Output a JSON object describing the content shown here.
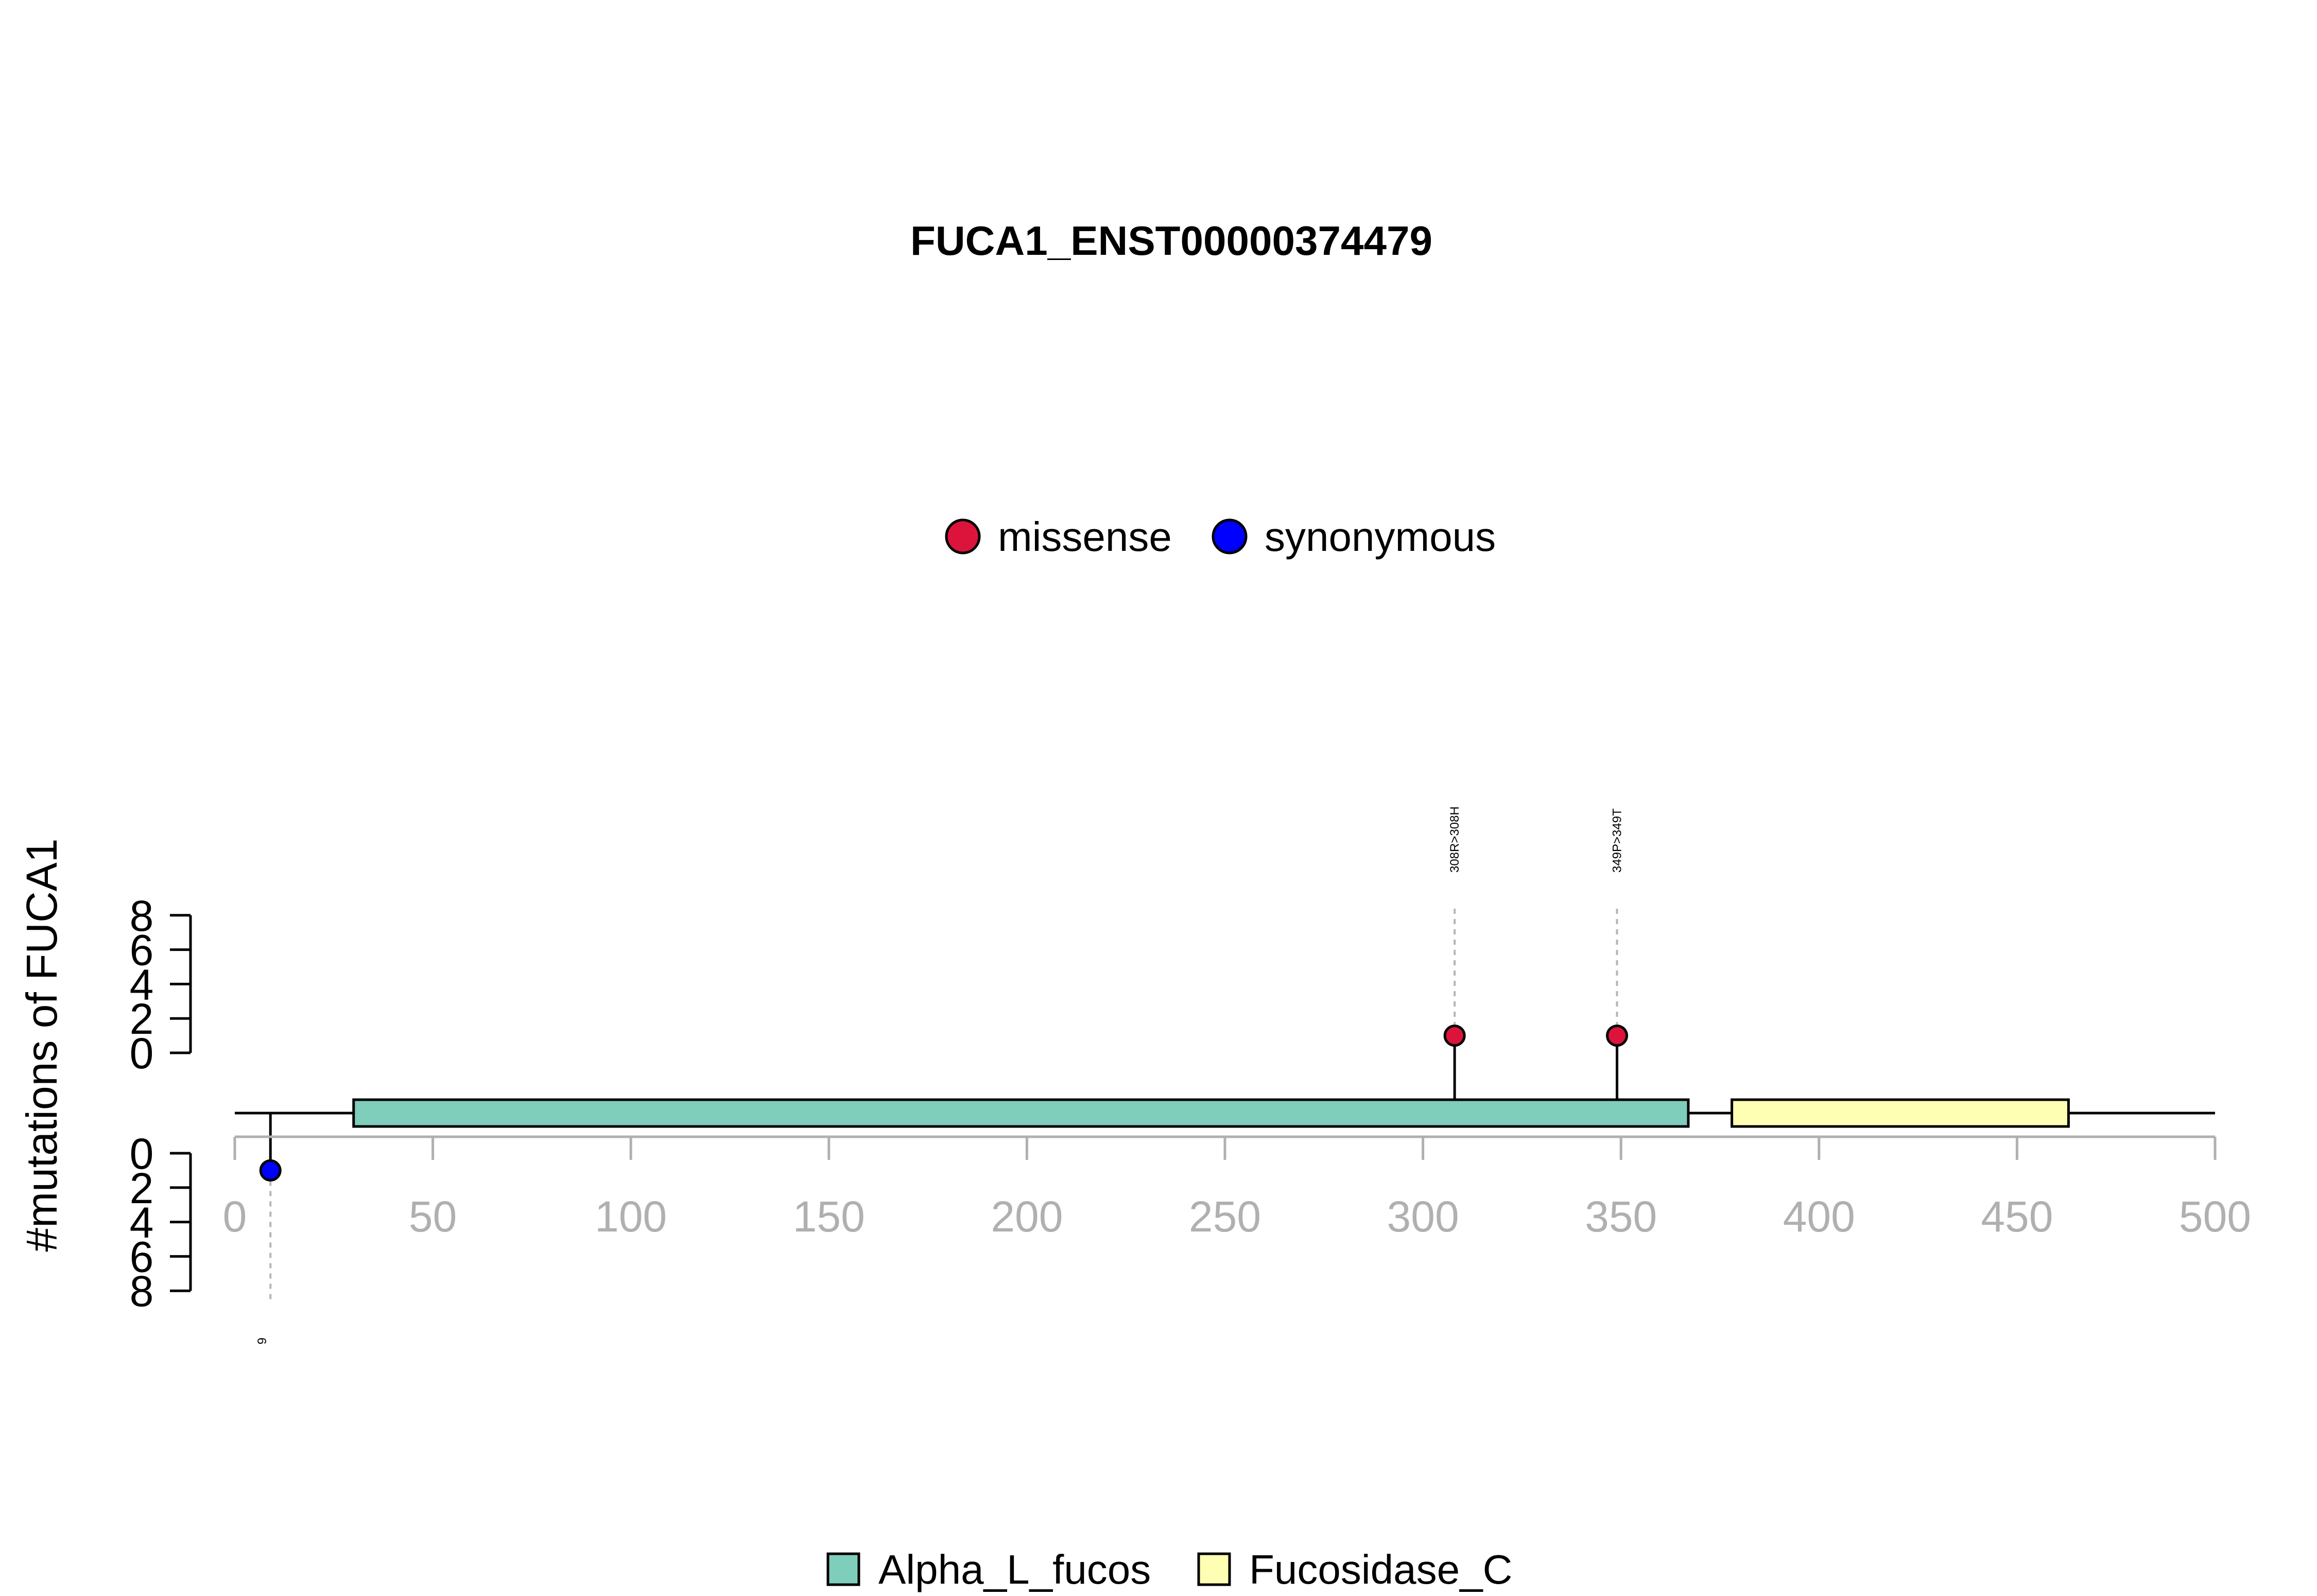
{
  "chart_data": {
    "type": "lollipop",
    "title": "FUCA1_ENST00000374479",
    "ylabel": "#mutations of FUCA1",
    "xlim": [
      0,
      500
    ],
    "x_ticks": [
      0,
      50,
      100,
      150,
      200,
      250,
      300,
      350,
      400,
      450,
      500
    ],
    "y_ticks": [
      0,
      2,
      4,
      6,
      8
    ],
    "ylim": [
      0,
      8
    ],
    "protein_length": 500,
    "mutation_types": [
      {
        "name": "missense",
        "color": "#dc143c"
      },
      {
        "name": "synonymous",
        "color": "#0000ff"
      }
    ],
    "domains": [
      {
        "name": "Alpha_L_fucos",
        "start": 30,
        "end": 367,
        "color": "#7fcdbb"
      },
      {
        "name": "Fucosidase_C",
        "start": 378,
        "end": 463,
        "color": "#ffffb3"
      }
    ],
    "mutations": [
      {
        "position": 308,
        "count": 1,
        "type": "missense",
        "side": "top",
        "label": "308R>308H"
      },
      {
        "position": 349,
        "count": 1,
        "type": "missense",
        "side": "top",
        "label": "349P>349T"
      },
      {
        "position": 9,
        "count": 1,
        "type": "synonymous",
        "side": "bottom",
        "label": "9"
      }
    ]
  }
}
